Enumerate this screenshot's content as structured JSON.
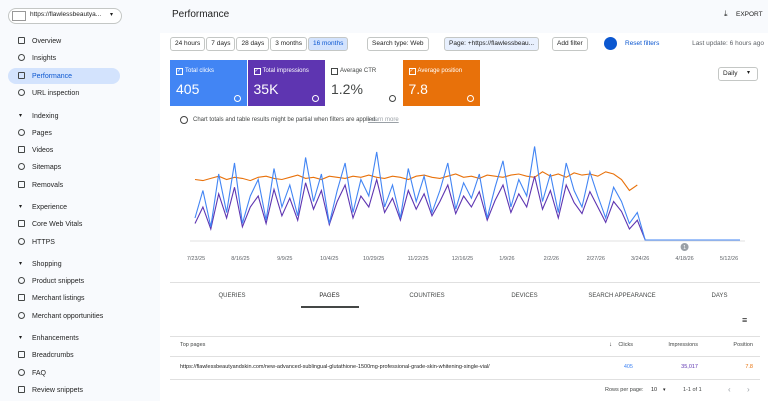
{
  "property": "https://flawlessbeautya...",
  "sidebar": [
    {
      "items": [
        {
          "label": "Overview"
        },
        {
          "label": "Insights"
        },
        {
          "label": "Performance",
          "active": true
        },
        {
          "label": "URL inspection"
        }
      ]
    },
    {
      "title": "Indexing",
      "items": [
        {
          "label": "Pages"
        },
        {
          "label": "Videos"
        },
        {
          "label": "Sitemaps"
        },
        {
          "label": "Removals"
        }
      ]
    },
    {
      "title": "Experience",
      "items": [
        {
          "label": "Core Web Vitals"
        },
        {
          "label": "HTTPS"
        }
      ]
    },
    {
      "title": "Shopping",
      "items": [
        {
          "label": "Product snippets"
        },
        {
          "label": "Merchant listings"
        },
        {
          "label": "Merchant opportunities"
        }
      ]
    },
    {
      "title": "Enhancements",
      "items": [
        {
          "label": "Breadcrumbs"
        },
        {
          "label": "FAQ"
        },
        {
          "label": "Review snippets"
        }
      ]
    }
  ],
  "header": {
    "title": "Performance",
    "export": "EXPORT"
  },
  "filters": {
    "ranges": [
      "24 hours",
      "7 days",
      "28 days",
      "3 months",
      "16 months"
    ],
    "selected_range": 4,
    "search_type": "Search type: Web",
    "page": "Page: +https://flawlessbeau...",
    "add": "Add filter",
    "reset": "Reset filters",
    "last_update": "Last update: 6 hours ago"
  },
  "metrics": [
    {
      "label": "Total clicks",
      "value": 405,
      "color": "#4285f4",
      "checked": true
    },
    {
      "label": "Total impressions",
      "value": "35K",
      "color": "#5e35b1",
      "checked": true
    },
    {
      "label": "Average CTR",
      "value": "1.2%",
      "color": "#ffffff",
      "checked": false
    },
    {
      "label": "Average position",
      "value": 7.8,
      "color": "#e8710a",
      "checked": true
    }
  ],
  "interval": "Daily",
  "notice": {
    "text": "Chart totals and table results might be partial when filters are applied.",
    "link": "Learn more"
  },
  "chart": {
    "type": "line",
    "ylim": [
      0,
      100
    ],
    "x_labels": [
      "7/23/25",
      "8/16/25",
      "9/9/25",
      "10/4/25",
      "10/29/25",
      "11/22/25",
      "12/16/25",
      "1/9/26",
      "2/2/26",
      "2/27/26",
      "3/24/26",
      "4/18/26",
      "5/12/26"
    ],
    "annotation": "1",
    "series": [
      {
        "color": "#e8710a",
        "values": [
          55,
          54,
          56,
          58,
          55,
          57,
          56,
          54,
          57,
          58,
          56,
          55,
          57,
          59,
          56,
          57,
          55,
          58,
          57,
          56,
          58,
          57,
          59,
          57,
          56,
          58,
          57,
          55,
          58,
          59,
          57,
          56,
          58,
          60,
          57,
          58,
          56,
          59,
          58,
          57,
          59,
          60,
          58,
          57,
          62,
          58,
          60,
          57,
          61,
          59,
          60,
          58,
          62,
          60,
          55,
          45,
          50,
          null,
          null,
          null,
          null,
          null,
          null,
          null,
          null,
          null,
          null,
          null,
          null,
          null
        ]
      },
      {
        "color": "#5e35b1",
        "values": [
          15,
          30,
          10,
          42,
          20,
          48,
          12,
          30,
          40,
          15,
          46,
          22,
          38,
          18,
          52,
          28,
          45,
          14,
          35,
          50,
          20,
          40,
          30,
          55,
          25,
          38,
          18,
          45,
          28,
          42,
          22,
          35,
          50,
          24,
          40,
          30,
          44,
          18,
          36,
          50,
          25,
          42,
          30,
          58,
          28,
          45,
          20,
          50,
          34,
          24,
          44,
          30,
          16,
          35,
          26,
          10,
          18,
          0,
          0,
          0,
          0,
          0,
          0,
          0,
          0,
          0,
          0,
          0,
          0,
          0
        ]
      },
      {
        "color": "#4285f4",
        "values": [
          20,
          45,
          12,
          60,
          25,
          70,
          15,
          40,
          55,
          18,
          65,
          30,
          50,
          22,
          75,
          35,
          60,
          15,
          45,
          70,
          25,
          55,
          40,
          80,
          30,
          50,
          20,
          65,
          35,
          58,
          25,
          45,
          70,
          28,
          52,
          38,
          60,
          20,
          48,
          72,
          30,
          55,
          40,
          85,
          35,
          60,
          25,
          70,
          45,
          30,
          62,
          40,
          20,
          48,
          35,
          15,
          25,
          0,
          0,
          0,
          0,
          0,
          0,
          0,
          0,
          0,
          0,
          0,
          0,
          0
        ]
      }
    ]
  },
  "tabs": {
    "items": [
      "QUERIES",
      "PAGES",
      "COUNTRIES",
      "DEVICES",
      "SEARCH APPEARANCE",
      "DAYS"
    ],
    "active": 1
  },
  "table": {
    "headers": [
      "Top pages",
      "Clicks",
      "Impressions",
      "Position"
    ],
    "rows": [
      [
        "https://flawlessbeautyandskin.com/new-advanced-sublingual-glutathione-1500mg-professional-grade-skin-whitening-single-vial/",
        405,
        "35,017",
        7.8
      ]
    ]
  },
  "pagination": {
    "rows_label": "Rows per page:",
    "rows": 10,
    "range": "1-1 of 1"
  }
}
